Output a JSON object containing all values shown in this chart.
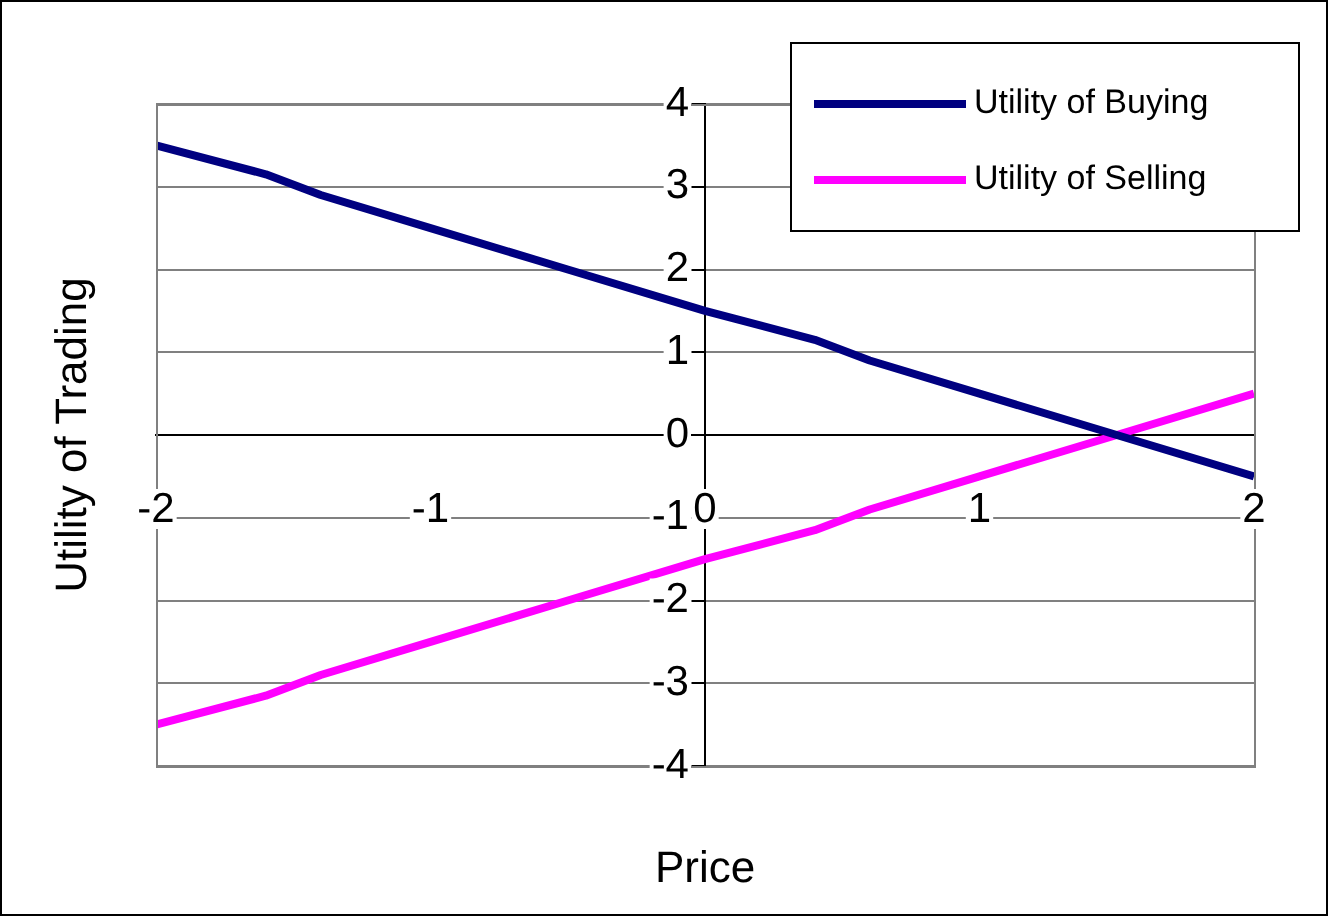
{
  "chart_data": {
    "type": "line",
    "xlabel": "Price",
    "ylabel": "Utility of Trading",
    "xlim": [
      -2,
      2
    ],
    "xticks": [
      -2,
      -1,
      0,
      1,
      2
    ],
    "ylim": [
      -4,
      4
    ],
    "yticks": [
      -4,
      -3,
      -2,
      -1,
      0,
      1,
      2,
      3,
      4
    ],
    "grid": "y",
    "legend": "top right",
    "marker": "none",
    "line_style": "solid",
    "x": [
      -2,
      -1.6,
      -1.4,
      -1,
      -0.5,
      0,
      0.4,
      0.6,
      1,
      1.5,
      2
    ],
    "series": [
      {
        "name": "Utility of Buying",
        "color": "#000080",
        "values": [
          3.5,
          3.15,
          2.9,
          2.5,
          2,
          1.5,
          1.15,
          0.9,
          0.5,
          0,
          -0.5
        ]
      },
      {
        "name": "Utility of Selling",
        "color": "#ff00ff",
        "values": [
          -3.5,
          -3.15,
          -2.9,
          -2.5,
          -2,
          -1.5,
          -1.15,
          -0.9,
          -0.5,
          0,
          0.5
        ]
      }
    ]
  }
}
